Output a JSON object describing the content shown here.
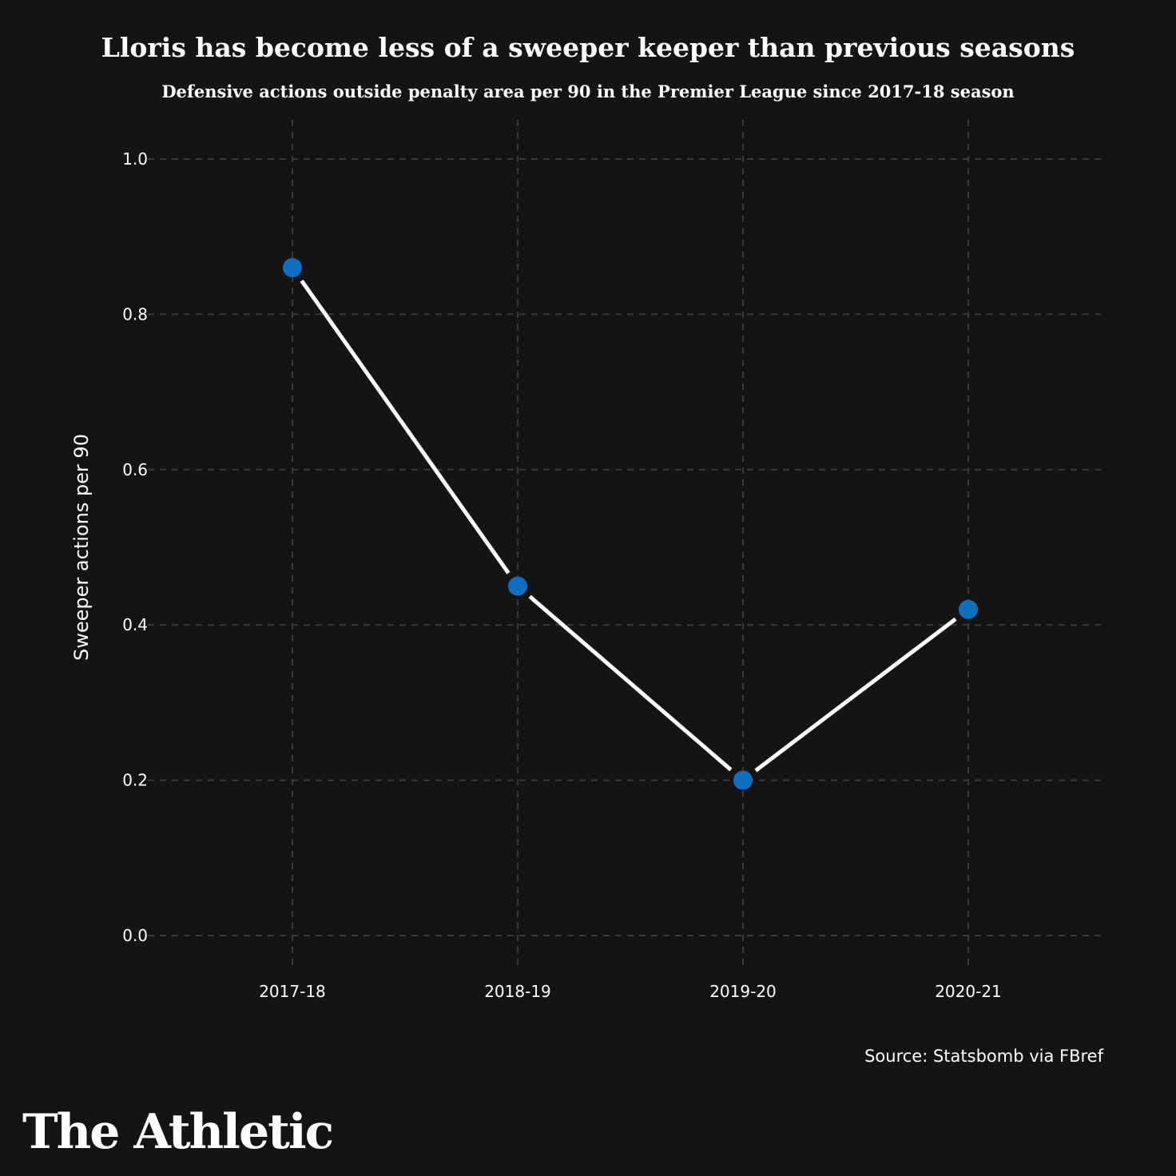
{
  "chart_data": {
    "type": "line",
    "title": "Lloris has become less of a sweeper keeper than previous seasons",
    "subtitle": "Defensive actions outside penalty area per 90 in the Premier League since 2017-18 season",
    "xlabel": "",
    "ylabel": "Sweeper actions per 90",
    "categories": [
      "2017-18",
      "2018-19",
      "2019-20",
      "2020-21"
    ],
    "values": [
      0.86,
      0.45,
      0.2,
      0.42
    ],
    "ylim": [
      0,
      1.0
    ],
    "yticks": [
      "0.0",
      "0.2",
      "0.4",
      "0.6",
      "0.8",
      "1.0"
    ],
    "grid": true,
    "line_color": "#ffffff",
    "marker_color": "#0e6fc0",
    "background": "#141414"
  },
  "source": "Source: Statsbomb via FBref",
  "logo": "The Athletic"
}
